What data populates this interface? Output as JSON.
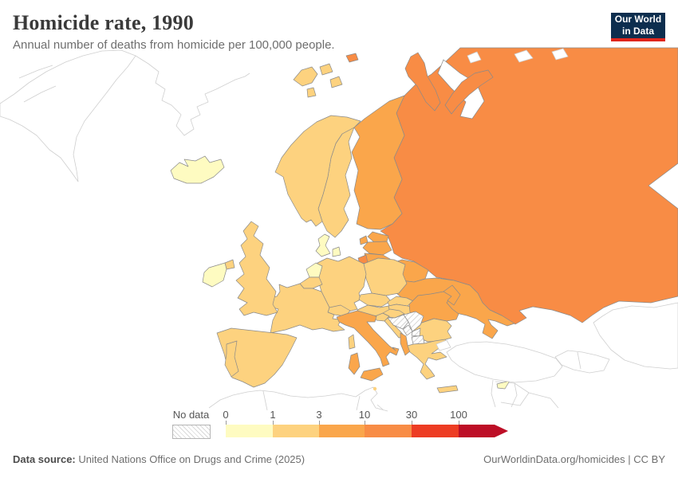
{
  "header": {
    "title": "Homicide rate, 1990",
    "subtitle": "Annual number of deaths from homicide per 100,000 people.",
    "logo_line1": "Our World",
    "logo_line2": "in Data",
    "logo_bg": "#0d2e4e",
    "logo_accent": "#e0261c"
  },
  "footer": {
    "source_label": "Data source:",
    "source_text": " United Nations Office on Drugs and Crime (2025)",
    "right_text": "OurWorldinData.org/homicides | CC BY"
  },
  "legend": {
    "no_data_label": "No data",
    "tick_labels": [
      "0",
      "1",
      "3",
      "10",
      "30",
      "100"
    ],
    "tick_offsets": [
      0,
      59,
      117,
      174,
      233,
      292
    ],
    "segment_widths": [
      59,
      58,
      57,
      59,
      59,
      45
    ],
    "bin_order": [
      "0-1",
      "1-3",
      "3-10",
      "10-30",
      "30-100",
      "100+"
    ],
    "open_ended_arrow": true
  },
  "chart_data": {
    "type": "heatmap",
    "variant": "choropleth-map-europe",
    "title": "Homicide rate, 1990",
    "subtitle": "Annual number of deaths from homicide per 100,000 people.",
    "unit": "deaths per 100,000 people",
    "bin_edges": [
      0,
      1,
      3,
      10,
      30,
      100
    ],
    "bin_colors": {
      "0-1": "#fefbc1",
      "1-3": "#fdd27f",
      "3-10": "#faa64b",
      "10-30": "#f88c45",
      "30-100": "#ed3c23",
      "100+": "#bd0e26"
    },
    "no_data_color": "hatch",
    "outside_region_color": "#ffffff",
    "country_bins": {
      "Russia": "10-30",
      "Finland": "3-10",
      "Estonia": "3-10",
      "Latvia": "3-10",
      "Lithuania": "3-10",
      "Belarus": "3-10",
      "Ukraine": "3-10",
      "Moldova": "3-10",
      "Romania": "3-10",
      "Italy": "3-10",
      "Albania": "3-10",
      "Norway": "1-3",
      "Sweden": "1-3",
      "Svalbard": "1-3",
      "United Kingdom": "1-3",
      "Northern Ireland": "1-3",
      "France": "1-3",
      "Belgium": "1-3",
      "Germany": "1-3",
      "Poland": "1-3",
      "Czechia": "1-3",
      "Slovakia": "1-3",
      "Austria": "1-3",
      "Switzerland": "1-3",
      "Hungary": "1-3",
      "Slovenia": "1-3",
      "Croatia": "1-3",
      "Spain": "1-3",
      "Portugal": "1-3",
      "Greece": "1-3",
      "Bulgaria": "1-3",
      "Malta": "1-3",
      "Iceland": "0-1",
      "Ireland": "0-1",
      "Netherlands": "0-1",
      "Denmark": "0-1",
      "Cyprus": "0-1",
      "Serbia": "no-data",
      "Bosnia and Herzegovina": "no-data",
      "Montenegro": "no-data",
      "Kosovo": "no-data",
      "North Macedonia": "no-data",
      "Greenland": "outside",
      "Franz Josef Land": "outside",
      "Turkey": "outside",
      "Caucasus": "outside",
      "Kazakhstan": "outside",
      "Africa": "outside",
      "Levant": "outside"
    },
    "legend_position": "bottom",
    "notes": "Former-Yugoslav states hatched as No data; countries outside Europe region drawn white"
  }
}
